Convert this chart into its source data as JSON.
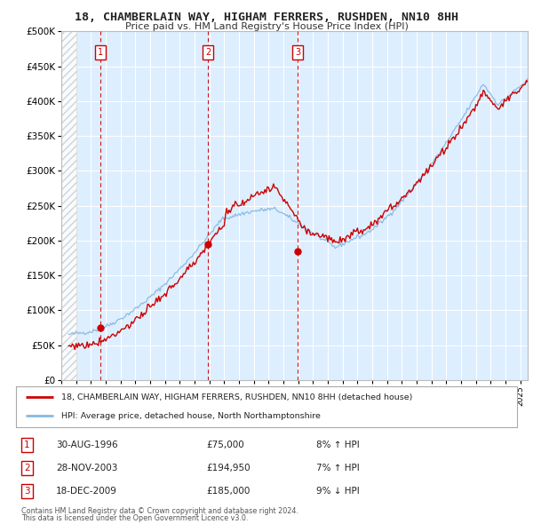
{
  "title": "18, CHAMBERLAIN WAY, HIGHAM FERRERS, RUSHDEN, NN10 8HH",
  "subtitle": "Price paid vs. HM Land Registry's House Price Index (HPI)",
  "legend_line1": "18, CHAMBERLAIN WAY, HIGHAM FERRERS, RUSHDEN, NN10 8HH (detached house)",
  "legend_line2": "HPI: Average price, detached house, North Northamptonshire",
  "footer_line1": "Contains HM Land Registry data © Crown copyright and database right 2024.",
  "footer_line2": "This data is licensed under the Open Government Licence v3.0.",
  "sale_color": "#cc0000",
  "hpi_line_color": "#88b8e0",
  "background_plot": "#ddeeff",
  "background_fig": "#ffffff",
  "grid_color": "#ffffff",
  "hatch_color": "#c8c8c8",
  "transactions": [
    {
      "num": 1,
      "date": "30-AUG-1996",
      "price": 75000,
      "pct": "8%",
      "dir": "↑",
      "x": 1996.66
    },
    {
      "num": 2,
      "date": "28-NOV-2003",
      "price": 194950,
      "pct": "7%",
      "dir": "↑",
      "x": 2003.91
    },
    {
      "num": 3,
      "date": "18-DEC-2009",
      "price": 185000,
      "pct": "9%",
      "dir": "↓",
      "x": 2009.96
    }
  ],
  "ylim": [
    0,
    500000
  ],
  "xlim_start": 1994.0,
  "xlim_end": 2025.5,
  "hatch_end": 1995.0,
  "data_start": 1995.0
}
